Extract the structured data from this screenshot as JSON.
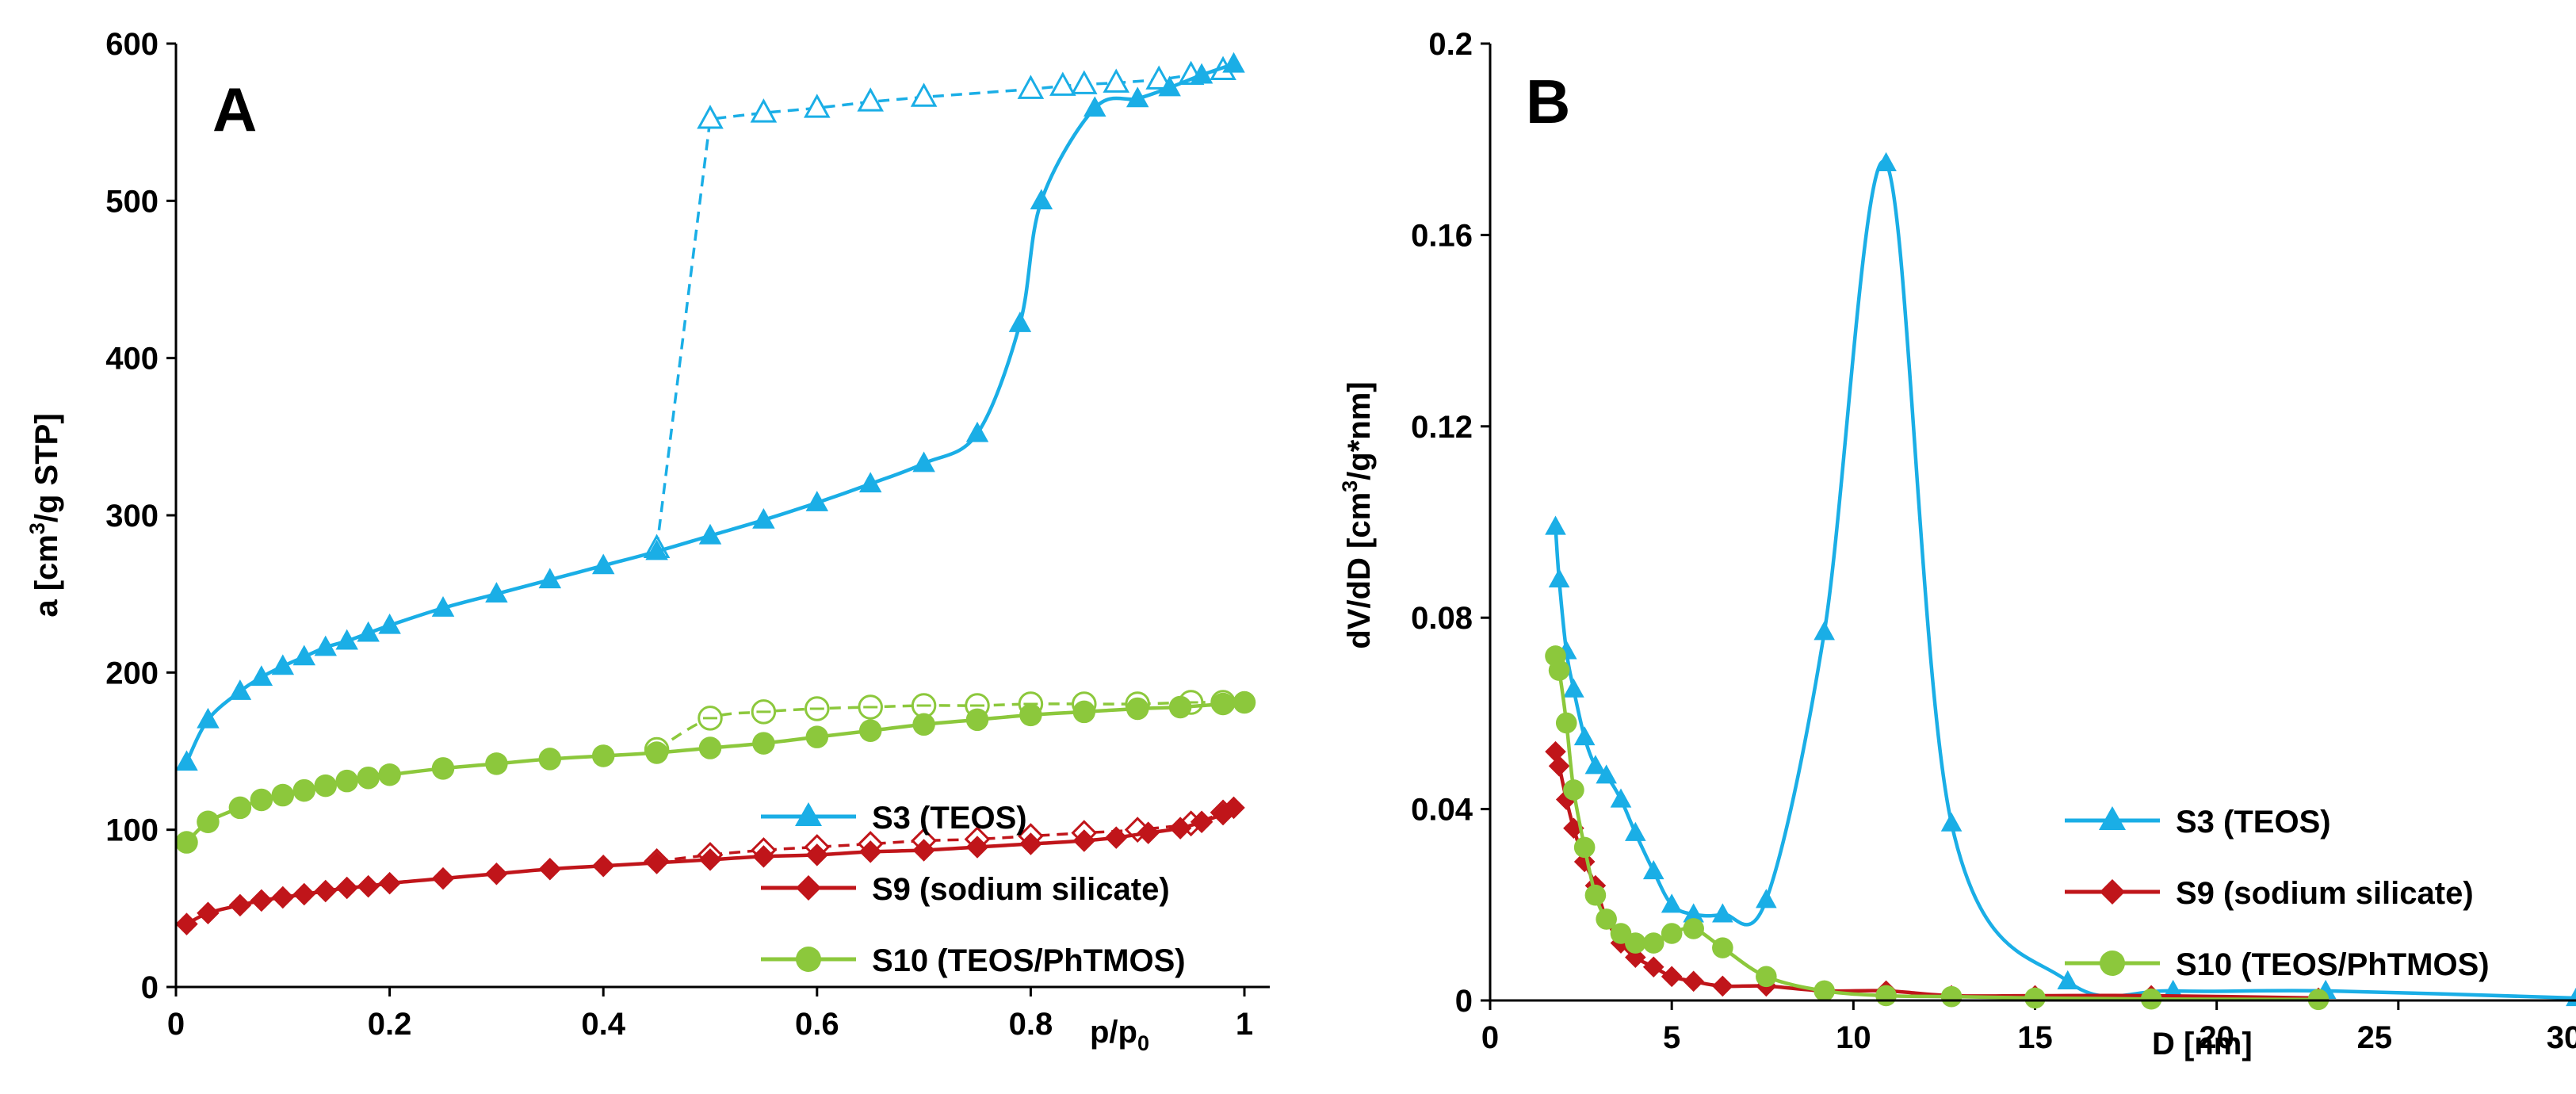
{
  "chart_data": [
    {
      "panel": "A",
      "type": "line",
      "xlabel_main": "p/p",
      "xlabel_sub": "0",
      "ylabel_pre": "a [cm",
      "ylabel_sup": "3",
      "ylabel_post": "/g STP]",
      "xlim": [
        0,
        1
      ],
      "ylim": [
        0,
        600
      ],
      "x_ticks": [
        "0",
        "0.2",
        "0.4",
        "0.6",
        "0.8",
        "1"
      ],
      "y_ticks": [
        "0",
        "100",
        "200",
        "300",
        "400",
        "500",
        "600"
      ],
      "legend": [
        "S3 (TEOS)",
        "S9 (sodium silicate)",
        "S10 (TEOS/PhTMOS)"
      ],
      "series": [
        {
          "name": "S3 (TEOS)",
          "branch": "adsorption",
          "color": "#1aaee6",
          "marker": "triangle",
          "filled": true,
          "dashed": false,
          "x": [
            0.01,
            0.03,
            0.06,
            0.08,
            0.1,
            0.12,
            0.14,
            0.16,
            0.18,
            0.2,
            0.25,
            0.3,
            0.35,
            0.4,
            0.45,
            0.5,
            0.55,
            0.6,
            0.65,
            0.7,
            0.75,
            0.79,
            0.81,
            0.86,
            0.9,
            0.93,
            0.96,
            0.99
          ],
          "y": [
            143,
            170,
            188,
            197,
            204,
            210,
            216,
            220,
            225,
            230,
            241,
            250,
            259,
            268,
            277,
            287,
            297,
            308,
            320,
            333,
            352,
            422,
            500,
            559,
            565,
            572,
            580,
            587
          ]
        },
        {
          "name": "S3 (TEOS)",
          "branch": "desorption",
          "color": "#1aaee6",
          "marker": "triangle",
          "filled": false,
          "dashed": true,
          "x": [
            0.45,
            0.5,
            0.55,
            0.6,
            0.65,
            0.7,
            0.8,
            0.83,
            0.85,
            0.88,
            0.92,
            0.95,
            0.98
          ],
          "y": [
            279,
            552,
            556,
            559,
            563,
            566,
            571,
            573,
            574,
            575,
            577,
            580,
            583
          ]
        },
        {
          "name": "S9 (sodium silicate)",
          "branch": "adsorption",
          "color": "#c0151a",
          "marker": "diamond",
          "filled": true,
          "dashed": false,
          "x": [
            0.01,
            0.03,
            0.06,
            0.08,
            0.1,
            0.12,
            0.14,
            0.16,
            0.18,
            0.2,
            0.25,
            0.3,
            0.35,
            0.4,
            0.45,
            0.5,
            0.55,
            0.6,
            0.65,
            0.7,
            0.75,
            0.8,
            0.85,
            0.88,
            0.91,
            0.94,
            0.96,
            0.98,
            0.99
          ],
          "y": [
            40,
            47,
            52,
            55,
            57,
            59,
            61,
            63,
            64,
            66,
            69,
            72,
            75,
            77,
            79,
            81,
            83,
            84,
            86,
            87,
            89,
            91,
            93,
            95,
            98,
            101,
            105,
            110,
            114
          ]
        },
        {
          "name": "S9 (sodium silicate)",
          "branch": "desorption",
          "color": "#c0151a",
          "marker": "diamond",
          "filled": false,
          "dashed": true,
          "x": [
            0.45,
            0.5,
            0.55,
            0.6,
            0.65,
            0.7,
            0.75,
            0.8,
            0.85,
            0.9,
            0.95,
            0.98
          ],
          "y": [
            80,
            84,
            87,
            89,
            91,
            93,
            94,
            96,
            98,
            100,
            104,
            111
          ]
        },
        {
          "name": "S10 (TEOS/PhTMOS)",
          "branch": "adsorption",
          "color": "#8cc83c",
          "marker": "circle",
          "filled": true,
          "dashed": false,
          "x": [
            0.01,
            0.03,
            0.06,
            0.08,
            0.1,
            0.12,
            0.14,
            0.16,
            0.18,
            0.2,
            0.25,
            0.3,
            0.35,
            0.4,
            0.45,
            0.5,
            0.55,
            0.6,
            0.65,
            0.7,
            0.75,
            0.8,
            0.85,
            0.9,
            0.94,
            0.98,
            1.0
          ],
          "y": [
            92,
            105,
            114,
            119,
            122,
            125,
            128,
            131,
            133,
            135,
            139,
            142,
            145,
            147,
            149,
            152,
            155,
            159,
            163,
            167,
            170,
            173,
            175,
            177,
            178,
            180,
            181
          ]
        },
        {
          "name": "S10 (TEOS/PhTMOS)",
          "branch": "desorption",
          "color": "#8cc83c",
          "marker": "circle",
          "filled": false,
          "dashed": true,
          "x": [
            0.45,
            0.5,
            0.55,
            0.6,
            0.65,
            0.7,
            0.75,
            0.8,
            0.85,
            0.9,
            0.95,
            0.98
          ],
          "y": [
            151,
            171,
            175,
            177,
            178,
            179,
            179,
            180,
            180,
            180,
            181,
            181
          ]
        }
      ]
    },
    {
      "panel": "B",
      "type": "line",
      "xlabel": "D [nm]",
      "ylabel_pre": "dV/dD [cm",
      "ylabel_sup": "3",
      "ylabel_post": "/g*nm]",
      "xlim": [
        0,
        30
      ],
      "ylim": [
        0,
        0.2
      ],
      "x_ticks": [
        "0",
        "5",
        "10",
        "15",
        "20",
        "25",
        "30"
      ],
      "y_ticks": [
        "0",
        "0.04",
        "0.08",
        "0.12",
        "0.16",
        "0.2"
      ],
      "legend": [
        "S3 (TEOS)",
        "S9 (sodium silicate)",
        "S10 (TEOS/PhTMOS)"
      ],
      "series": [
        {
          "name": "S3 (TEOS)",
          "color": "#1aaee6",
          "marker": "triangle",
          "x": [
            1.8,
            1.9,
            2.1,
            2.3,
            2.6,
            2.9,
            3.2,
            3.6,
            4.0,
            4.5,
            5.0,
            5.6,
            6.4,
            7.6,
            9.2,
            10.9,
            12.7,
            15.9,
            18.8,
            23.0,
            29.9
          ],
          "y": [
            0.099,
            0.088,
            0.073,
            0.065,
            0.055,
            0.049,
            0.047,
            0.042,
            0.035,
            0.027,
            0.02,
            0.018,
            0.018,
            0.021,
            0.077,
            0.175,
            0.037,
            0.004,
            0.002,
            0.002,
            0.0005
          ]
        },
        {
          "name": "S9 (sodium silicate)",
          "color": "#c0151a",
          "marker": "diamond",
          "x": [
            1.8,
            1.9,
            2.1,
            2.3,
            2.6,
            2.9,
            3.2,
            3.6,
            4.0,
            4.5,
            5.0,
            5.6,
            6.4,
            7.6,
            9.2,
            10.9,
            12.7,
            15.0,
            18.2,
            22.8
          ],
          "y": [
            0.052,
            0.049,
            0.042,
            0.036,
            0.029,
            0.024,
            0.017,
            0.012,
            0.009,
            0.007,
            0.005,
            0.004,
            0.003,
            0.003,
            0.002,
            0.002,
            0.001,
            0.001,
            0.001,
            0.0005
          ]
        },
        {
          "name": "S10 (TEOS/PhTMOS)",
          "color": "#8cc83c",
          "marker": "circle",
          "x": [
            1.8,
            1.9,
            2.1,
            2.3,
            2.6,
            2.9,
            3.2,
            3.6,
            4.0,
            4.5,
            5.0,
            5.6,
            6.4,
            7.6,
            9.2,
            10.9,
            12.7,
            15.0,
            18.2,
            22.8
          ],
          "y": [
            0.072,
            0.069,
            0.058,
            0.044,
            0.032,
            0.022,
            0.017,
            0.014,
            0.012,
            0.012,
            0.014,
            0.015,
            0.011,
            0.005,
            0.002,
            0.001,
            0.0008,
            0.0005,
            0.0003,
            0.0002
          ]
        }
      ]
    }
  ]
}
